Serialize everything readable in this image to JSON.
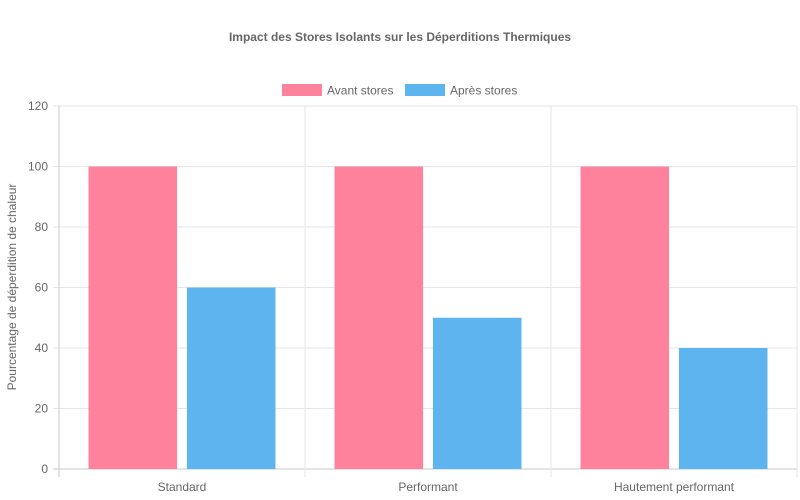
{
  "chart_data": {
    "type": "bar",
    "title": "Impact des Stores Isolants sur les Déperditions Thermiques",
    "xlabel": "",
    "ylabel": "Pourcentage de déperdition de chaleur",
    "categories": [
      "Standard",
      "Performant",
      "Hautement performant"
    ],
    "series": [
      {
        "name": "Avant stores",
        "values": [
          100,
          100,
          100
        ],
        "color": "#ff829c"
      },
      {
        "name": "Après stores",
        "values": [
          60,
          50,
          40
        ],
        "color": "#5eb4ee"
      }
    ],
    "ylim": [
      0,
      120
    ],
    "y_ticks": [
      "0",
      "20",
      "40",
      "60",
      "80",
      "100",
      "120"
    ],
    "legend_position": "top",
    "grid": true
  }
}
